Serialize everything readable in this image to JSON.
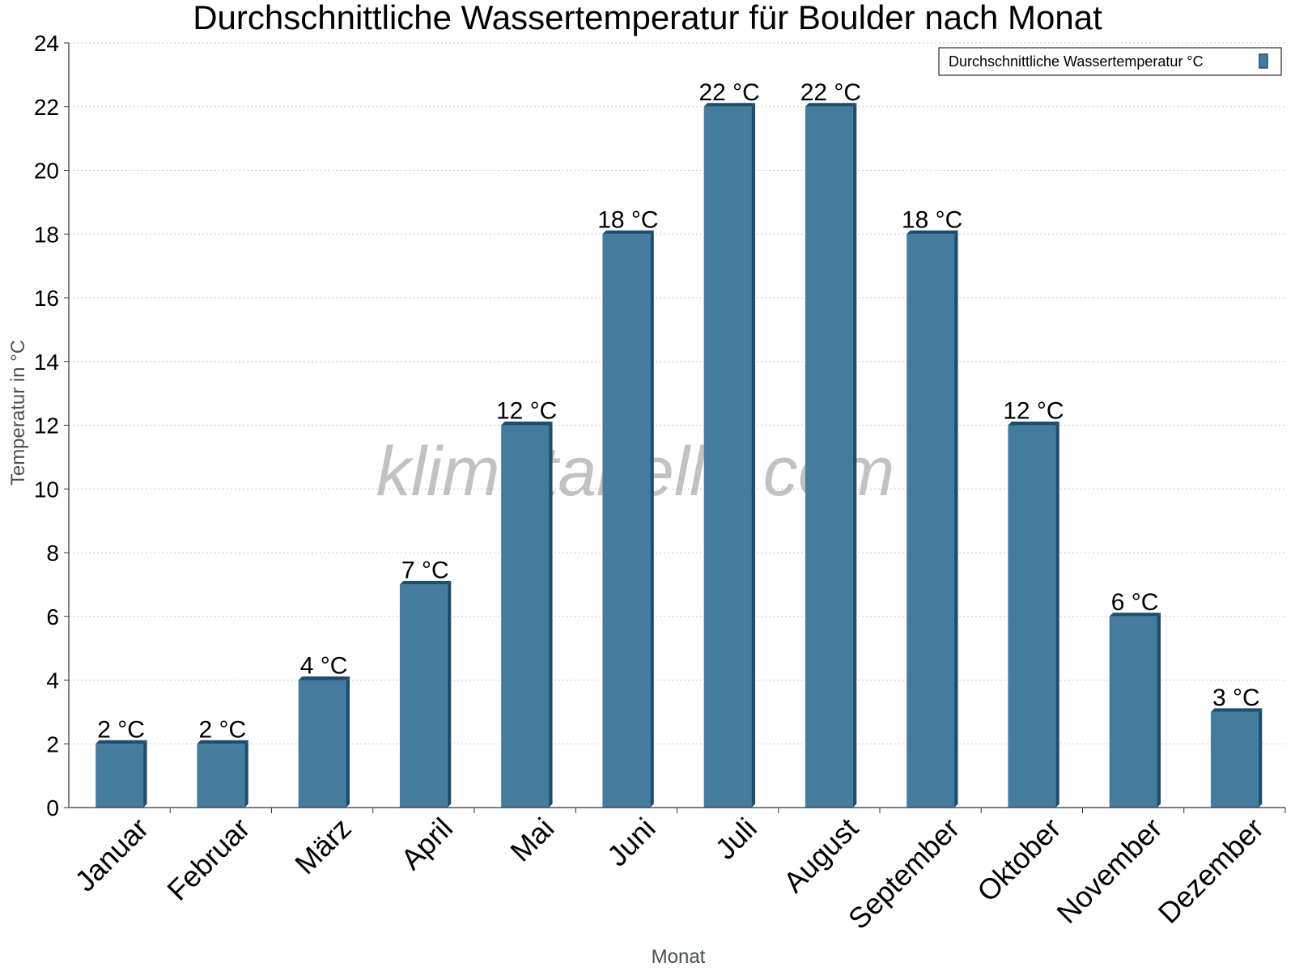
{
  "chart_data": {
    "type": "bar",
    "title": "Durchschnittliche Wassertemperatur für Boulder nach Monat",
    "xlabel": "Monat",
    "ylabel": "Temperatur in °C",
    "categories": [
      "Januar",
      "Februar",
      "März",
      "April",
      "Mai",
      "Juni",
      "Juli",
      "August",
      "September",
      "Oktober",
      "November",
      "Dezember"
    ],
    "series": [
      {
        "name": "Durchschnittliche Wassertemperatur °C",
        "values": [
          2,
          2,
          4,
          7,
          12,
          18,
          22,
          22,
          18,
          12,
          6,
          3
        ],
        "color": "#457b9d",
        "side_color": "#1d4e6e"
      }
    ],
    "data_labels": [
      "2 °C",
      "2 °C",
      "4 °C",
      "7 °C",
      "12 °C",
      "18 °C",
      "22 °C",
      "22 °C",
      "18 °C",
      "12 °C",
      "6 °C",
      "3 °C"
    ],
    "ylim": [
      0,
      24
    ],
    "yticks": [
      0,
      2,
      4,
      6,
      8,
      10,
      12,
      14,
      16,
      18,
      20,
      22,
      24
    ],
    "grid": true,
    "legend_position": "top-right"
  },
  "watermark": "klimatabelle.com"
}
